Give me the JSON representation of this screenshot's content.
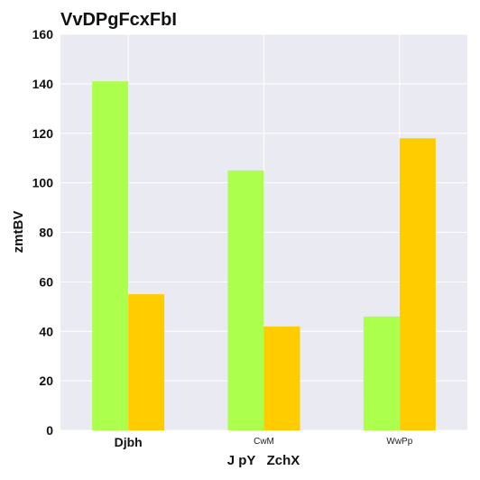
{
  "chart_data": {
    "type": "bar",
    "title": "VvDPgFcxFbI",
    "xlabel": "J pY   ZchX",
    "ylabel": "zmtBV",
    "categories": [
      "Djbh",
      "CwM",
      "WwPp"
    ],
    "series": [
      {
        "values": [
          141,
          105,
          46
        ],
        "color": "#adff4d"
      },
      {
        "values": [
          55,
          42,
          118
        ],
        "color": "#ffcc00"
      }
    ],
    "ylim": [
      0,
      160
    ],
    "yticks": [
      0,
      20,
      40,
      60,
      80,
      100,
      120,
      140,
      160
    ],
    "grid": true,
    "legend": "none",
    "plot_background": "#eaeaf2"
  }
}
